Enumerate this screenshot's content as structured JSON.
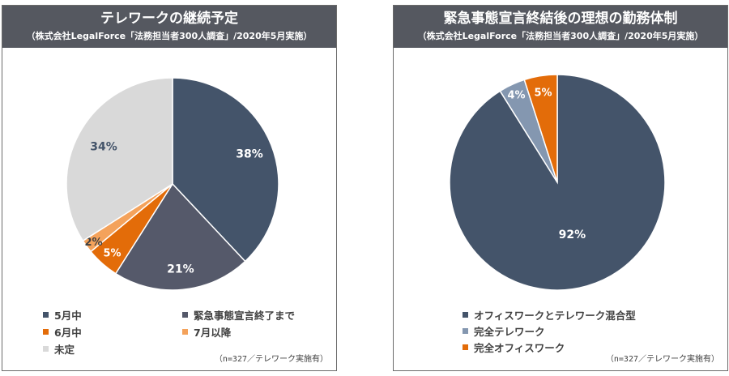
{
  "colors": {
    "navy": "#44546a",
    "slate": "#55596a",
    "orange": "#e36c09",
    "light_orange": "#f4a25b",
    "light_gray": "#d9d9d9",
    "steel": "#8497b0",
    "header_bg": "#555860"
  },
  "chart_data": [
    {
      "type": "pie",
      "title": "テレワークの継続予定",
      "subtitle": "（株式会社LegalForce「法務担当者300人調査」/2020年5月実施）",
      "note": "（n=327／テレワーク実施有）",
      "start_angle": "12 o'clock",
      "direction": "clockwise",
      "slices": [
        {
          "name": "5月中",
          "value": 38,
          "label": "38%",
          "color": "#44546a"
        },
        {
          "name": "緊急事態宣言終了まで",
          "value": 21,
          "label": "21%",
          "color": "#55596a"
        },
        {
          "name": "6月中",
          "value": 5,
          "label": "5%",
          "color": "#e36c09"
        },
        {
          "name": "7月以降",
          "value": 2,
          "label": "2%",
          "color": "#f4a25b"
        },
        {
          "name": "未定",
          "value": 34,
          "label": "34%",
          "color": "#d9d9d9"
        }
      ]
    },
    {
      "type": "pie",
      "title": "緊急事態宣言終結後の理想の勤務体制",
      "subtitle": "（株式会社LegalForce「法務担当者300人調査」/2020年5月実施）",
      "note": "（n=327／テレワーク実施有）",
      "start_angle": "12 o'clock",
      "direction": "clockwise",
      "slices": [
        {
          "name": "オフィスワークとテレワーク混合型",
          "value": 92,
          "label": "92%",
          "color": "#44546a"
        },
        {
          "name": "完全テレワーク",
          "value": 4,
          "label": "4%",
          "color": "#8497b0"
        },
        {
          "name": "完全オフィスワーク",
          "value": 5,
          "label": "5%",
          "color": "#e36c09"
        }
      ]
    }
  ]
}
